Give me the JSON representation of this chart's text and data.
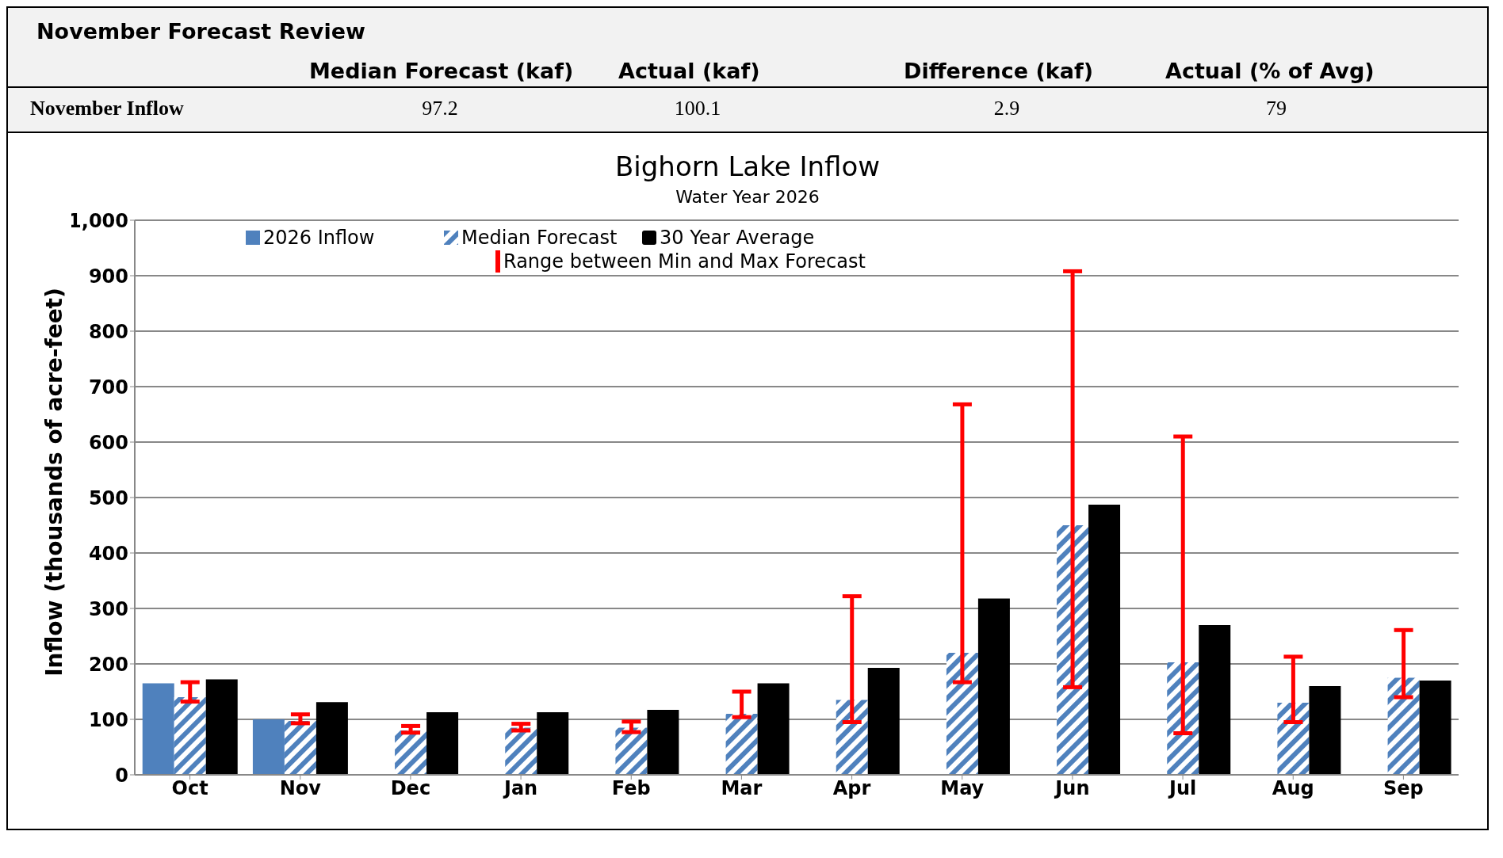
{
  "chart_data": {
    "type": "bar",
    "title": "Bighorn Lake Inflow",
    "subtitle": "Water Year 2026",
    "ylabel": "Inflow (thousands of acre-feet)",
    "categories": [
      "Oct",
      "Nov",
      "Dec",
      "Jan",
      "Feb",
      "Mar",
      "Apr",
      "May",
      "Jun",
      "Jul",
      "Aug",
      "Sep"
    ],
    "series": [
      {
        "name": "2026 Inflow",
        "color": "#4f81bd",
        "values": [
          165,
          100,
          null,
          null,
          null,
          null,
          null,
          null,
          null,
          null,
          null,
          null
        ]
      },
      {
        "name": "Median Forecast",
        "color": "#4f81bd",
        "values": [
          140,
          97,
          80,
          85,
          85,
          110,
          135,
          220,
          450,
          203,
          130,
          175
        ],
        "errors": [
          [
            132,
            167
          ],
          [
            93,
            109
          ],
          [
            76,
            88
          ],
          [
            80,
            92
          ],
          [
            77,
            96
          ],
          [
            104,
            150
          ],
          [
            95,
            322
          ],
          [
            167,
            668
          ],
          [
            158,
            908
          ],
          [
            75,
            610
          ],
          [
            95,
            213
          ],
          [
            140,
            261
          ]
        ]
      },
      {
        "name": "30 Year Average",
        "color": "#000000",
        "values": [
          172,
          131,
          113,
          113,
          117,
          165,
          193,
          318,
          487,
          270,
          160,
          170
        ]
      }
    ],
    "ylim": [
      0,
      1000
    ],
    "yticks": [
      0,
      100,
      200,
      300,
      400,
      500,
      600,
      700,
      800,
      900,
      {
        "value": 1000,
        "label": "1,000"
      }
    ],
    "grid": "y",
    "legend": "top",
    "annotations": [
      "Range between Min and Max Forecast",
      "November Forecast Review",
      "Median Forecast (kaf)",
      "Actual (kaf)",
      "Difference (kaf)",
      "Actual (% of Avg)",
      "November Inflow",
      "97.2",
      "100.1",
      "2.9",
      "79"
    ]
  }
}
